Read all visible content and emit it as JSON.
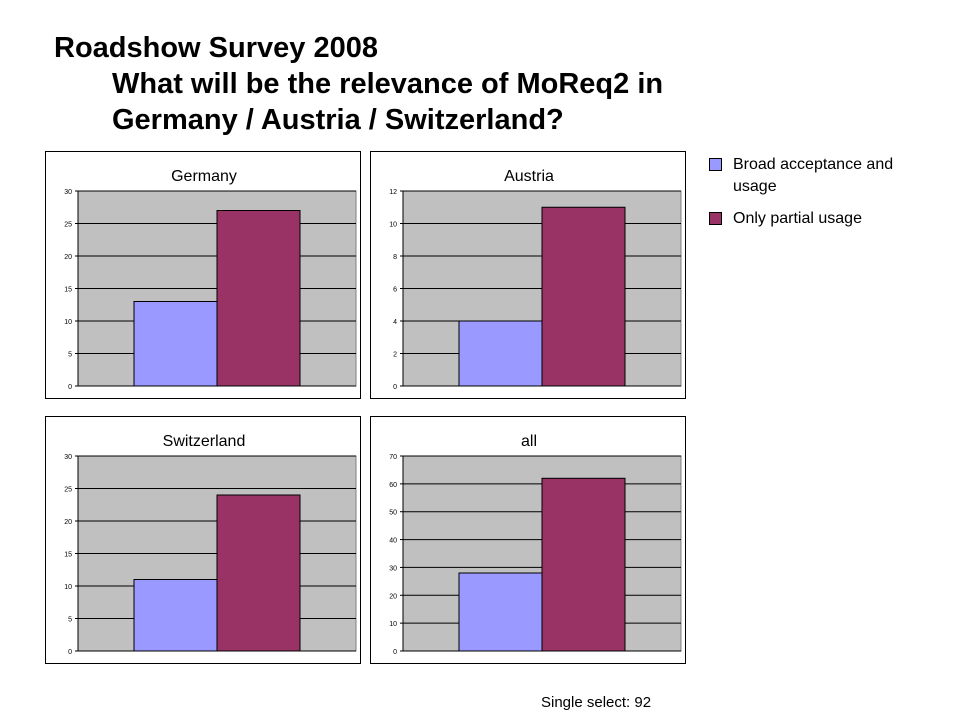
{
  "title": {
    "line1": "Roadshow Survey 2008",
    "line2": "What will be the relevance of MoReq2 in",
    "line3": "Germany / Austria  / Switzerland?"
  },
  "legend": {
    "items": [
      {
        "label": "Broad acceptance and usage",
        "color": "#9999ff"
      },
      {
        "label": "Only partial usage",
        "color": "#993366"
      }
    ]
  },
  "footer": "Single select: 92",
  "colors": {
    "plot_bg": "#c0c0c0",
    "border": "#000000"
  },
  "chart_data": [
    {
      "type": "bar",
      "title": "Germany",
      "series": [
        {
          "name": "Broad acceptance and usage",
          "values": [
            13
          ]
        },
        {
          "name": "Only partial usage",
          "values": [
            27
          ]
        }
      ],
      "ylim": [
        0,
        30
      ],
      "yticks": [
        0,
        5,
        10,
        15,
        20,
        25,
        30
      ],
      "grid": true
    },
    {
      "type": "bar",
      "title": "Austria",
      "series": [
        {
          "name": "Broad acceptance and usage",
          "values": [
            4
          ]
        },
        {
          "name": "Only partial usage",
          "values": [
            11
          ]
        }
      ],
      "ylim": [
        0,
        12
      ],
      "yticks": [
        0,
        2,
        4,
        6,
        8,
        10,
        12
      ],
      "grid": true
    },
    {
      "type": "bar",
      "title": "Switzerland",
      "series": [
        {
          "name": "Broad acceptance and usage",
          "values": [
            11
          ]
        },
        {
          "name": "Only partial usage",
          "values": [
            24
          ]
        }
      ],
      "ylim": [
        0,
        30
      ],
      "yticks": [
        0,
        5,
        10,
        15,
        20,
        25,
        30
      ],
      "grid": true
    },
    {
      "type": "bar",
      "title": "all",
      "series": [
        {
          "name": "Broad acceptance and usage",
          "values": [
            28
          ]
        },
        {
          "name": "Only partial usage",
          "values": [
            62
          ]
        }
      ],
      "ylim": [
        0,
        70
      ],
      "yticks": [
        0,
        10,
        20,
        30,
        40,
        50,
        60,
        70
      ],
      "grid": true
    }
  ]
}
